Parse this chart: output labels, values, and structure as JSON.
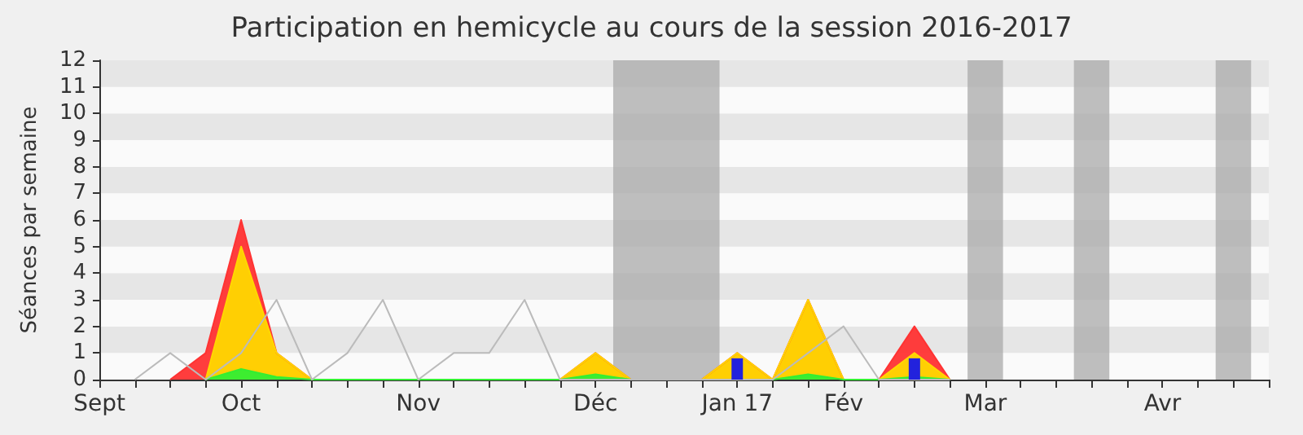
{
  "chart_data": {
    "type": "area",
    "title": "Participation en hemicycle au cours de la session 2016-2017",
    "ylabel": "Séances par semaine",
    "x": [
      "2016-09-19",
      "2016-09-26",
      "2016-10-03",
      "2016-10-10",
      "2016-10-17",
      "2016-10-24",
      "2016-10-31",
      "2016-11-07",
      "2016-11-14",
      "2016-11-21",
      "2016-11-28",
      "2016-12-05",
      "2016-12-12",
      "2016-12-19",
      "2016-12-26",
      "2017-01-02",
      "2017-01-09",
      "2017-01-16",
      "2017-01-23",
      "2017-01-30",
      "2017-02-06",
      "2017-02-13",
      "2017-02-20",
      "2017-02-27"
    ],
    "xlim": [
      "2016-09-12",
      "2017-05-01"
    ],
    "xticks": [
      {
        "value": "2016-09-12",
        "label": "Sept"
      },
      {
        "value": "2016-09-19",
        "label": null
      },
      {
        "value": "2016-09-26",
        "label": null
      },
      {
        "value": "2016-10-03",
        "label": null
      },
      {
        "value": "2016-10-10",
        "label": "Oct"
      },
      {
        "value": "2016-10-17",
        "label": null
      },
      {
        "value": "2016-10-24",
        "label": null
      },
      {
        "value": "2016-10-31",
        "label": null
      },
      {
        "value": "2016-11-07",
        "label": null
      },
      {
        "value": "2016-11-14",
        "label": "Nov"
      },
      {
        "value": "2016-11-21",
        "label": null
      },
      {
        "value": "2016-11-28",
        "label": null
      },
      {
        "value": "2016-12-05",
        "label": null
      },
      {
        "value": "2016-12-12",
        "label": null
      },
      {
        "value": "2016-12-19",
        "label": "Déc"
      },
      {
        "value": "2016-12-26",
        "label": null
      },
      {
        "value": "2017-01-02",
        "label": null
      },
      {
        "value": "2017-01-09",
        "label": null
      },
      {
        "value": "2017-01-16",
        "label": "Jan 17"
      },
      {
        "value": "2017-01-23",
        "label": null
      },
      {
        "value": "2017-01-30",
        "label": null
      },
      {
        "value": "2017-02-06",
        "label": "Fév"
      },
      {
        "value": "2017-02-13",
        "label": null
      },
      {
        "value": "2017-02-20",
        "label": null
      },
      {
        "value": "2017-02-27",
        "label": null
      },
      {
        "value": "2017-03-06",
        "label": "Mar"
      },
      {
        "value": "2017-03-13",
        "label": null
      },
      {
        "value": "2017-03-20",
        "label": null
      },
      {
        "value": "2017-03-27",
        "label": null
      },
      {
        "value": "2017-04-03",
        "label": null
      },
      {
        "value": "2017-04-10",
        "label": "Avr"
      },
      {
        "value": "2017-04-17",
        "label": null
      },
      {
        "value": "2017-04-24",
        "label": null
      },
      {
        "value": "2017-05-01",
        "label": null
      }
    ],
    "ylim": [
      0,
      12
    ],
    "yticks": [
      0,
      1,
      2,
      3,
      4,
      5,
      6,
      7,
      8,
      9,
      10,
      11,
      12
    ],
    "marker": "none",
    "line_style": "solid",
    "bands": [
      {
        "axis": "x",
        "from": "2016-12-22T12:00",
        "to": "2017-01-12T12:00",
        "color": "#aaaaaa"
      },
      {
        "axis": "x",
        "from": "2017-03-02T12:00",
        "to": "2017-03-09T12:00",
        "color": "#aaaaaa"
      },
      {
        "axis": "x",
        "from": "2017-03-23T12:00",
        "to": "2017-03-30T12:00",
        "color": "#aaaaaa"
      },
      {
        "axis": "x",
        "from": "2017-04-20T12:00",
        "to": "2017-04-27T12:00",
        "color": "#aaaaaa"
      }
    ],
    "series": [
      {
        "color": "#ff3333",
        "values": [
          null,
          0,
          1,
          6,
          1,
          0,
          0,
          0,
          0,
          0,
          0,
          0,
          0,
          1,
          0,
          0,
          0,
          1,
          0,
          3,
          0,
          0,
          2,
          0
        ]
      },
      {
        "color": "#ffd700",
        "values": [
          null,
          null,
          0,
          5,
          1,
          0,
          0,
          0,
          0,
          0,
          0,
          0,
          0,
          1,
          0,
          0,
          0,
          1,
          0,
          3,
          0,
          0,
          1,
          0
        ]
      },
      {
        "color": "#33ee33",
        "values": [
          null,
          null,
          0,
          0.4,
          0.1,
          0,
          0,
          0,
          0,
          0,
          0,
          0,
          0,
          0.2,
          0,
          0,
          0,
          0,
          0,
          0.2,
          0,
          0,
          0.1,
          0
        ]
      },
      {
        "type": "line",
        "color": "#bbbbbb",
        "values": [
          0,
          1,
          0,
          1,
          3,
          0,
          1,
          3,
          0,
          1,
          1,
          3,
          0,
          0,
          0,
          0,
          0,
          0,
          0,
          1,
          2,
          0,
          0,
          0
        ]
      },
      {
        "type": "bar",
        "color": "#2222dd",
        "values": [
          null,
          null,
          null,
          null,
          null,
          null,
          null,
          null,
          null,
          null,
          null,
          null,
          null,
          null,
          null,
          null,
          null,
          0.8,
          null,
          null,
          null,
          null,
          0.8,
          null
        ]
      }
    ]
  }
}
